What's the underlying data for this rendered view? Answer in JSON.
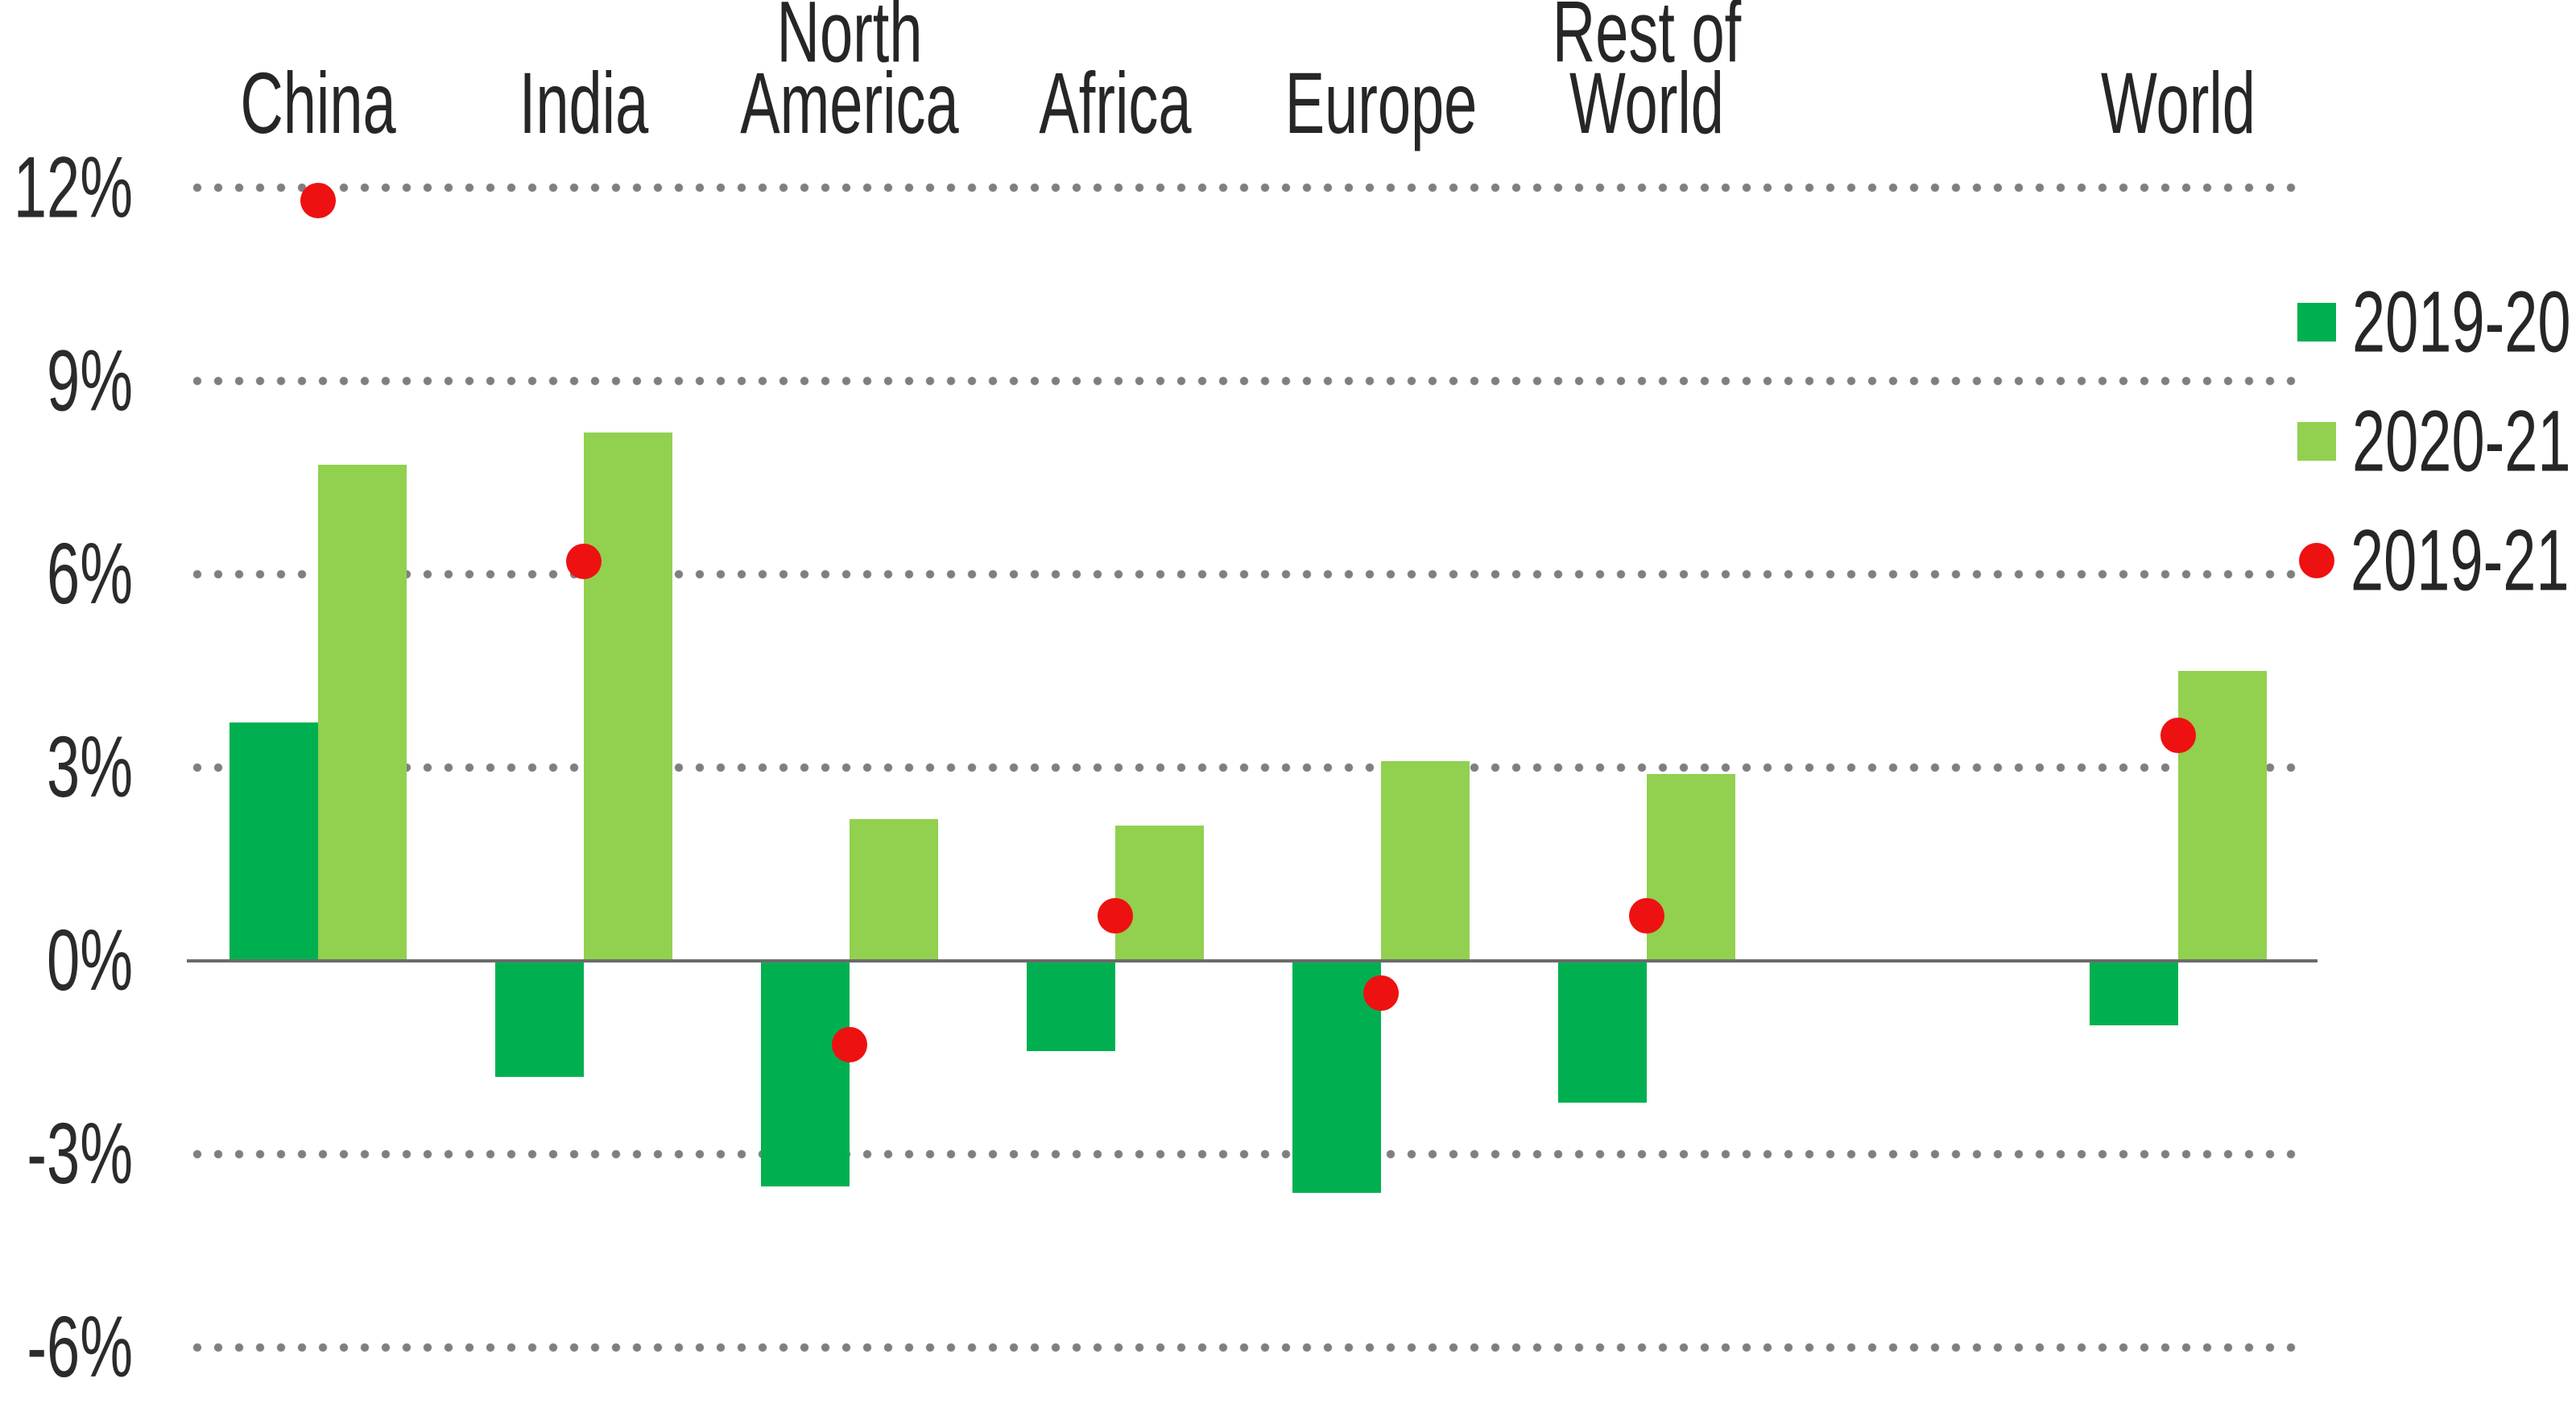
{
  "chart_data": {
    "type": "bar",
    "title": "",
    "description": "Grouped bar chart of percent growth by region with scatter overlay",
    "categories": [
      "China",
      "India",
      "North America",
      "Africa",
      "Europe",
      "Rest of World",
      "World"
    ],
    "category_display": [
      "China",
      "India",
      "North\nAmerica",
      "Africa",
      "Europe",
      "Rest of\nWorld",
      "World"
    ],
    "x_slots": [
      0,
      1,
      2,
      3,
      4,
      5,
      7
    ],
    "series": [
      {
        "name": "2019-20",
        "type": "bar",
        "color": "#00B050",
        "values": [
          3.7,
          -1.8,
          -3.5,
          -1.4,
          -3.6,
          -2.2,
          -1.0
        ]
      },
      {
        "name": "2020-21",
        "type": "bar",
        "color": "#92D050",
        "values": [
          7.7,
          8.2,
          2.2,
          2.1,
          3.1,
          2.9,
          4.5
        ]
      },
      {
        "name": "2019-21",
        "type": "scatter",
        "color": "#EE1111",
        "values": [
          11.8,
          6.2,
          -1.3,
          0.7,
          -0.5,
          0.7,
          3.5
        ]
      }
    ],
    "y_axis": {
      "unit": "%",
      "min": -6,
      "max": 12,
      "ticks": [
        {
          "label": "12%",
          "value": 12
        },
        {
          "label": "9%",
          "value": 9
        },
        {
          "label": "6%",
          "value": 6
        },
        {
          "label": "3%",
          "value": 3
        },
        {
          "label": "0%",
          "value": 0
        },
        {
          "label": "-3%",
          "value": -3
        },
        {
          "label": "-6%",
          "value": -6
        }
      ]
    },
    "grid": {
      "style": "dotted",
      "color": "#7F7F7F",
      "zero_line_color": "#6B6B6B"
    },
    "legend_position": "right",
    "background": "#FFFFFF",
    "text_color": "#2B2B2B"
  },
  "legend": {
    "items": [
      {
        "label": "2019-20",
        "marker": "square",
        "color": "#00B050"
      },
      {
        "label": "2020-21",
        "marker": "square",
        "color": "#92D050"
      },
      {
        "label": "2019-21",
        "marker": "circle",
        "color": "#EE1111"
      }
    ]
  }
}
